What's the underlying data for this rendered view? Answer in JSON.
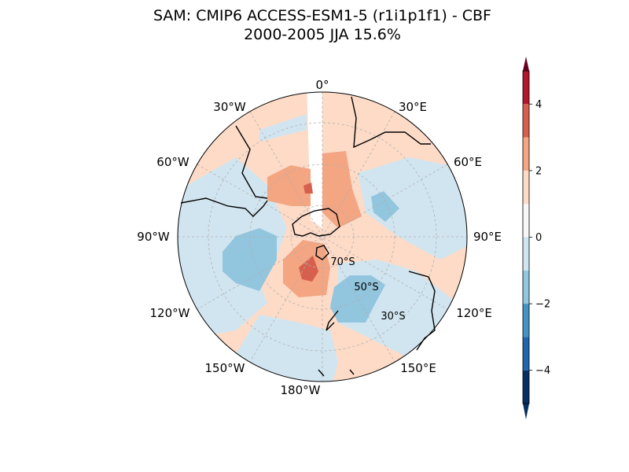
{
  "title_line1": "SAM: CMIP6 ACCESS-ESM1-5 (r1i1p1f1) - CBF",
  "title_line2": "2000-2005 JJA 15.6%",
  "chart_data": {
    "type": "heatmap",
    "projection": "south-polar-stereographic",
    "title": "SAM: CMIP6 ACCESS-ESM1-5 (r1i1p1f1) - CBF 2000-2005 JJA 15.6%",
    "lon_labels": [
      "0°",
      "30°E",
      "60°E",
      "90°E",
      "120°E",
      "150°E",
      "180°W",
      "150°W",
      "120°W",
      "90°W",
      "60°W",
      "30°W"
    ],
    "lat_labels": [
      "70°S",
      "50°S",
      "30°S"
    ],
    "colorbar": {
      "levels": [
        -5,
        -4,
        -3,
        -2,
        -1,
        0,
        1,
        2,
        3,
        4,
        5
      ],
      "ticks": [
        "4",
        "2",
        "0",
        "−2",
        "−4"
      ],
      "tick_values": [
        4,
        2,
        0,
        -2,
        -4
      ],
      "extend": "both",
      "colors": [
        "#053061",
        "#2166ac",
        "#4393c3",
        "#92c5de",
        "#d1e5f0",
        "#f7f7f7",
        "#fddbc7",
        "#f4a582",
        "#d6604d",
        "#b2182b",
        "#67001f"
      ]
    },
    "regions": [
      {
        "name": "ring-positive-outer",
        "level": 0.5
      },
      {
        "name": "indian-negative-band",
        "level": -0.5
      },
      {
        "name": "atlantic-positive",
        "level": 1.5
      },
      {
        "name": "atlantic-center-positive",
        "level": 2.5
      },
      {
        "name": "pacific-negative",
        "level": -1.5
      },
      {
        "name": "pacific-positive",
        "level": 1.5
      },
      {
        "name": "pacific-positive-core",
        "level": 2.5
      },
      {
        "name": "australia-negative",
        "level": -1.5
      },
      {
        "name": "indian-negative-small",
        "level": -1.5
      }
    ]
  }
}
